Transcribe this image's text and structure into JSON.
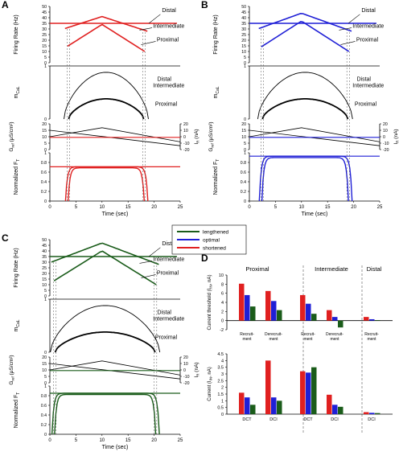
{
  "panel_letters": [
    "A",
    "B",
    "C",
    "D"
  ],
  "colors": {
    "lengthened": "#1a5c1a",
    "optimal": "#1f1fd6",
    "shortened": "#e02020",
    "black": "#000000"
  },
  "labels": {
    "fr_ylabel": "Firing Rate (Hz)",
    "m_ylabel": "m",
    "m_sub": "CaL",
    "g_ylabel": "G",
    "g_sub": "ref",
    "g_units": "(μS/cm²)",
    "i_ylabel": "I",
    "i_sub": "R",
    "i_units": "(nA)",
    "f_ylabel": "Normalized F",
    "f_sub": "T",
    "xlabel": "Time (sec)",
    "distal": "Distal",
    "intermediate": "Intermediate",
    "proximal": "Proximal"
  },
  "ticks": {
    "fr": [
      "0",
      "5",
      "10",
      "15",
      "20",
      "25",
      "30",
      "35",
      "40",
      "45",
      "50"
    ],
    "m": [
      "1",
      "0"
    ],
    "g": [
      "20",
      "15",
      "10",
      "5",
      "0"
    ],
    "i": [
      "20",
      "10",
      "0",
      "-10",
      "-20"
    ],
    "f": [
      "0",
      "0.2",
      "0.4",
      "0.6",
      "0.8",
      "1"
    ],
    "x": [
      "0",
      "5",
      "10",
      "15",
      "20",
      "25"
    ]
  },
  "legend": {
    "items": [
      "lengthened",
      "optimal",
      "shortened"
    ]
  },
  "panel_d": {
    "section_labels": [
      "Proximal",
      "Intermediate",
      "Distal"
    ],
    "top_ylabel": "Current threshold (I",
    "top_ylabel_sub": "IN",
    "top_ylabel_end": ", nA)",
    "bottom_ylabel": "Current (I",
    "bottom_ylabel_sub": "IN",
    "bottom_ylabel_end": ", nA)",
    "top_ticks": [
      "-2",
      "0",
      "2",
      "4",
      "6",
      "8",
      "10"
    ],
    "bottom_ticks": [
      "0",
      "0.5",
      "1",
      "1.5",
      "2",
      "2.5",
      "3",
      "3.5",
      "4",
      "4.5"
    ],
    "top_cats": [
      "Recruit-ment",
      "Derecruit-ment",
      "Recruit-ment",
      "Derecruit-ment",
      "Recruit-ment"
    ],
    "bottom_cats": [
      "DCT",
      "DCI",
      "DCT",
      "DCI",
      "DCI"
    ]
  },
  "chart_data": [
    {
      "type": "line",
      "panel": "A-C",
      "title": "",
      "xlabel": "Time (sec)",
      "xlim": [
        0,
        25
      ],
      "subplots": [
        {
          "ylabel": "Firing Rate (Hz)",
          "ylim": [
            0,
            50
          ]
        },
        {
          "ylabel": "mCaL",
          "ylim": [
            0,
            1
          ]
        },
        {
          "ylabel": "Gref (μS/cm²)",
          "ylim": [
            0,
            20
          ],
          "ylabel2": "IR (nA)",
          "ylim2": [
            -20,
            20
          ]
        },
        {
          "ylabel": "Normalized FT",
          "ylim": [
            0,
            1
          ]
        }
      ],
      "series": [
        {
          "name": "lengthened",
          "fr_onset_s": 0.7,
          "fr_offset_s": 20.5,
          "fr_peak": 47,
          "ft_plateau": 0.85
        },
        {
          "name": "optimal",
          "fr_onset_s": 2.2,
          "fr_offset_s": 19.2,
          "fr_peak": 44,
          "ft_plateau": 0.93
        },
        {
          "name": "shortened",
          "fr_onset_s": 3.3,
          "fr_offset_s": 18.3,
          "fr_peak": 41,
          "ft_plateau": 0.71
        }
      ]
    },
    {
      "type": "bar",
      "panel": "D-top",
      "ylabel": "Current threshold (IIN, nA)",
      "ylim": [
        -2,
        10
      ],
      "categories": [
        "Proximal Recruitment",
        "Proximal Derecruitment",
        "Intermediate Recruitment",
        "Intermediate Derecruitment",
        "Distal Recruitment"
      ],
      "series": [
        {
          "name": "shortened",
          "values": [
            8.1,
            6.5,
            5.6,
            2.3,
            0.8
          ]
        },
        {
          "name": "optimal",
          "values": [
            5.6,
            4.3,
            3.7,
            0.8,
            0.3
          ]
        },
        {
          "name": "lengthened",
          "values": [
            3.1,
            2.3,
            1.5,
            -1.5,
            0.1
          ]
        }
      ]
    },
    {
      "type": "bar",
      "panel": "D-bottom",
      "ylabel": "Current (IIN, nA)",
      "ylim": [
        0,
        4.5
      ],
      "categories": [
        "Proximal DCT",
        "Proximal DCI",
        "Intermediate DCT",
        "Intermediate DCI",
        "Distal DCI"
      ],
      "series": [
        {
          "name": "shortened",
          "values": [
            1.6,
            4.0,
            3.2,
            1.45,
            0.15
          ]
        },
        {
          "name": "optimal",
          "values": [
            1.25,
            1.25,
            3.1,
            0.7,
            0.1
          ]
        },
        {
          "name": "lengthened",
          "values": [
            0.7,
            1.0,
            3.5,
            0.55,
            0.08
          ]
        }
      ]
    }
  ]
}
